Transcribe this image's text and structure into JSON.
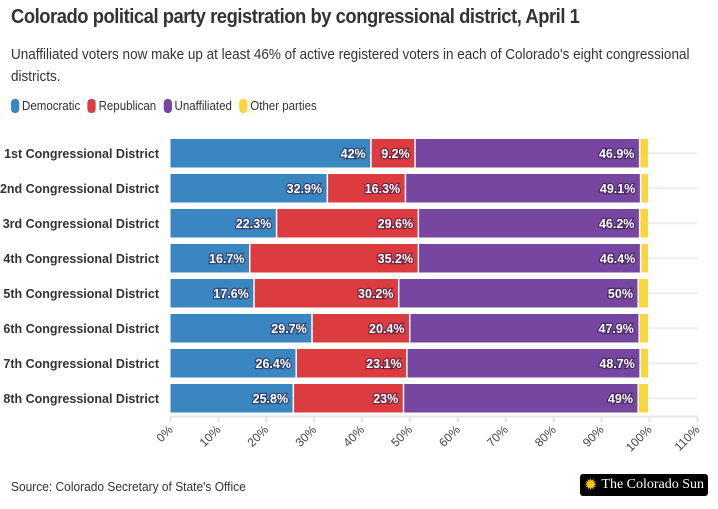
{
  "title": "Colorado political party registration by congressional district, April 1",
  "subtitle": "Unaffiliated voters now make up at least 46% of active registered voters in each of Colorado's eight congressional districts.",
  "source": "Source: Colorado Secretary of State's Office",
  "logo": "The Colorado Sun",
  "chart_data": {
    "type": "bar",
    "orientation": "horizontal",
    "stacked": true,
    "title": "Colorado political party registration by congressional district, April 1",
    "categories": [
      "1st Congressional District",
      "2nd Congressional District",
      "3rd Congressional District",
      "4th Congressional District",
      "5th Congressional District",
      "6th Congressional District",
      "7th Congressional District",
      "8th Congressional District"
    ],
    "series": [
      {
        "name": "Democratic",
        "color": "#3a86c0",
        "values": [
          42,
          32.9,
          22.3,
          16.7,
          17.6,
          29.7,
          26.4,
          25.8
        ],
        "labels": [
          "42%",
          "32.9%",
          "22.3%",
          "16.7%",
          "17.6%",
          "29.7%",
          "26.4%",
          "25.8%"
        ]
      },
      {
        "name": "Republican",
        "color": "#dc3b40",
        "values": [
          9.2,
          16.3,
          29.6,
          35.2,
          30.2,
          20.4,
          23.1,
          23
        ],
        "labels": [
          "9.2%",
          "16.3%",
          "29.6%",
          "35.2%",
          "30.2%",
          "20.4%",
          "23.1%",
          "23%"
        ]
      },
      {
        "name": "Unaffiliated",
        "color": "#7646a1",
        "values": [
          46.9,
          49.1,
          46.2,
          46.4,
          50,
          47.9,
          48.7,
          49
        ],
        "labels": [
          "46.9%",
          "49.1%",
          "46.2%",
          "46.4%",
          "50%",
          "47.9%",
          "48.7%",
          "49%"
        ]
      },
      {
        "name": "Other parties",
        "color": "#f9d53e",
        "values": [
          1.9,
          1.7,
          1.9,
          1.7,
          2.2,
          2,
          1.8,
          2.2
        ]
      }
    ],
    "xlim": [
      0,
      110
    ],
    "xticks": [
      "0%",
      "10%",
      "20%",
      "30%",
      "40%",
      "50%",
      "60%",
      "70%",
      "80%",
      "90%",
      "100%",
      "110%"
    ],
    "grid": true,
    "legend": "top-left"
  }
}
